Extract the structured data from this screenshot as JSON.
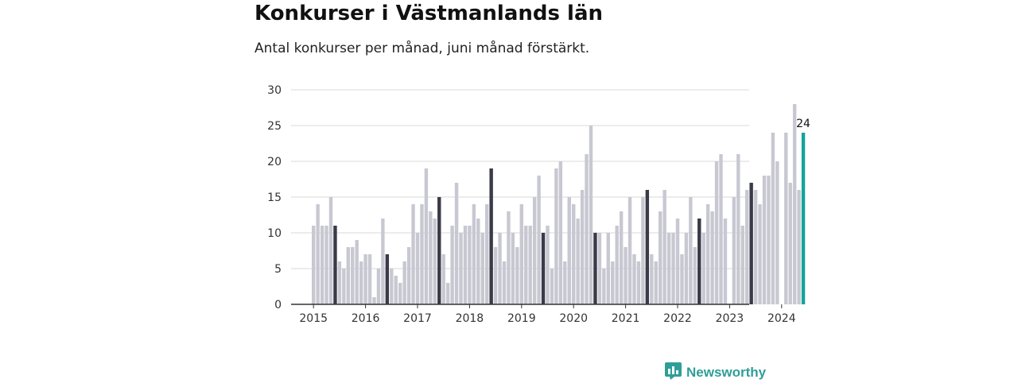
{
  "chart_data": {
    "type": "bar",
    "title": "Konkurser i Västmanlands län",
    "subtitle": "Antal konkurser per månad, juni månad förstärkt.",
    "xlabel": "",
    "ylabel": "",
    "ylim": [
      0,
      30
    ],
    "yticks": [
      0,
      5,
      10,
      15,
      20,
      25,
      30
    ],
    "xticks": [
      "2015",
      "2016",
      "2017",
      "2018",
      "2019",
      "2020",
      "2021",
      "2022",
      "2023",
      "2024"
    ],
    "grid": true,
    "first_month": "2015-01",
    "last_month": "2024-06",
    "values": [
      11,
      14,
      11,
      11,
      15,
      11,
      6,
      5,
      8,
      8,
      9,
      6,
      7,
      7,
      1,
      5,
      12,
      7,
      5,
      4,
      3,
      6,
      8,
      14,
      10,
      14,
      19,
      13,
      12,
      15,
      7,
      3,
      11,
      17,
      10,
      11,
      11,
      14,
      12,
      10,
      14,
      19,
      8,
      10,
      6,
      13,
      10,
      8,
      14,
      11,
      11,
      15,
      18,
      10,
      11,
      5,
      19,
      20,
      6,
      15,
      14,
      12,
      16,
      21,
      25,
      10,
      10,
      5,
      10,
      6,
      11,
      13,
      8,
      15,
      7,
      6,
      15,
      16,
      7,
      6,
      13,
      16,
      10,
      10,
      12,
      7,
      10,
      15,
      8,
      12,
      10,
      14,
      13,
      20,
      21,
      12,
      0,
      15,
      21,
      11,
      16,
      17,
      16,
      14,
      18,
      18,
      24,
      20,
      0,
      24,
      17,
      28,
      16,
      24
    ],
    "highlight_month": 6,
    "latest_label": "24",
    "colors": {
      "bar": "#c8c8d2",
      "highlight": "#3a3a48",
      "latest": "#14a39a",
      "grid": "#d9d9d9",
      "axis": "#333333"
    }
  },
  "brand": {
    "name": "Newsworthy",
    "icon": "newsworthy-logo-icon",
    "color": "#2f9e98"
  }
}
